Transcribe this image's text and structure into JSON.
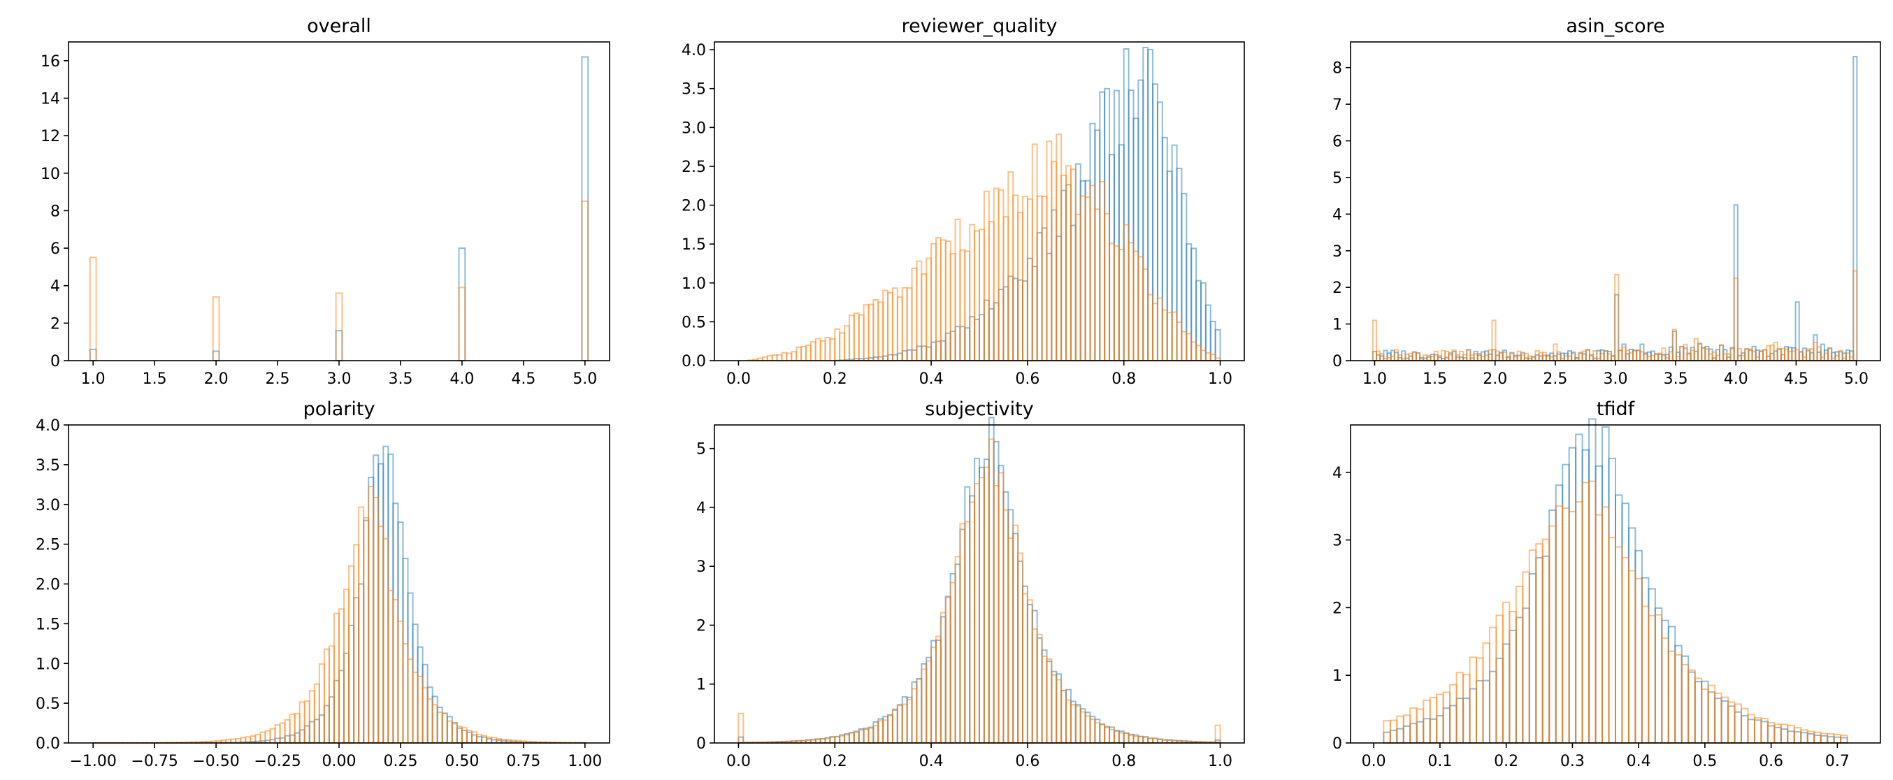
{
  "colors": {
    "series_a": "#1f77b4",
    "series_b": "#ff7f0e",
    "frame": "#000000"
  },
  "chart_data": [
    {
      "type": "histogram",
      "title": "overall",
      "xlim": [
        0.8,
        5.2
      ],
      "ylim": [
        0,
        17
      ],
      "xticks": [
        1.0,
        1.5,
        2.0,
        2.5,
        3.0,
        3.5,
        4.0,
        4.5,
        5.0
      ],
      "xtick_labels": [
        "1.0",
        "1.5",
        "2.0",
        "2.5",
        "3.0",
        "3.5",
        "4.0",
        "4.5",
        "5.0"
      ],
      "yticks": [
        0,
        2,
        4,
        6,
        8,
        10,
        12,
        14,
        16
      ],
      "ytick_labels": [
        "0",
        "2",
        "4",
        "6",
        "8",
        "10",
        "12",
        "14",
        "16"
      ],
      "bin_width": 0.05,
      "series": [
        {
          "color": "#1f77b4",
          "points": [
            [
              1.0,
              0.6
            ],
            [
              2.0,
              0.5
            ],
            [
              3.0,
              1.6
            ],
            [
              4.0,
              6.0
            ],
            [
              5.0,
              16.2
            ]
          ]
        },
        {
          "color": "#ff7f0e",
          "points": [
            [
              1.0,
              5.5
            ],
            [
              2.0,
              3.4
            ],
            [
              3.0,
              3.6
            ],
            [
              4.0,
              3.9
            ],
            [
              5.0,
              8.5
            ]
          ]
        }
      ]
    },
    {
      "type": "histogram",
      "title": "reviewer_quality",
      "xlim": [
        -0.05,
        1.05
      ],
      "ylim": [
        0,
        4.1
      ],
      "xticks": [
        0.0,
        0.2,
        0.4,
        0.6,
        0.8,
        1.0
      ],
      "xtick_labels": [
        "0.0",
        "0.2",
        "0.4",
        "0.6",
        "0.8",
        "1.0"
      ],
      "yticks": [
        0.0,
        0.5,
        1.0,
        1.5,
        2.0,
        2.5,
        3.0,
        3.5,
        4.0
      ],
      "ytick_labels": [
        "0.0",
        "0.5",
        "1.0",
        "1.5",
        "2.0",
        "2.5",
        "3.0",
        "3.5",
        "4.0"
      ],
      "bin_width": 0.01,
      "series": [
        {
          "color": "#1f77b4",
          "points": [
            [
              0.2,
              0.0
            ],
            [
              0.3,
              0.05
            ],
            [
              0.4,
              0.2
            ],
            [
              0.5,
              0.6
            ],
            [
              0.55,
              0.9
            ],
            [
              0.6,
              1.1
            ],
            [
              0.65,
              1.7
            ],
            [
              0.7,
              2.1
            ],
            [
              0.75,
              2.9
            ],
            [
              0.8,
              3.4
            ],
            [
              0.84,
              3.9
            ],
            [
              0.88,
              3.2
            ],
            [
              0.92,
              2.3
            ],
            [
              0.95,
              1.3
            ],
            [
              0.98,
              0.5
            ],
            [
              1.0,
              0.3
            ]
          ]
        },
        {
          "color": "#ff7f0e",
          "points": [
            [
              0.02,
              0.0
            ],
            [
              0.1,
              0.1
            ],
            [
              0.2,
              0.35
            ],
            [
              0.3,
              0.8
            ],
            [
              0.4,
              1.3
            ],
            [
              0.5,
              1.8
            ],
            [
              0.6,
              2.3
            ],
            [
              0.65,
              2.6
            ],
            [
              0.7,
              2.2
            ],
            [
              0.75,
              2.0
            ],
            [
              0.8,
              1.6
            ],
            [
              0.85,
              1.0
            ],
            [
              0.9,
              0.6
            ],
            [
              0.95,
              0.2
            ],
            [
              1.0,
              0.02
            ]
          ]
        }
      ]
    },
    {
      "type": "histogram",
      "title": "asin_score",
      "xlim": [
        0.8,
        5.2
      ],
      "ylim": [
        0,
        8.7
      ],
      "xticks": [
        1.0,
        1.5,
        2.0,
        2.5,
        3.0,
        3.5,
        4.0,
        4.5,
        5.0
      ],
      "xtick_labels": [
        "1.0",
        "1.5",
        "2.0",
        "2.5",
        "3.0",
        "3.5",
        "4.0",
        "4.5",
        "5.0"
      ],
      "yticks": [
        0,
        1,
        2,
        3,
        4,
        5,
        6,
        7,
        8
      ],
      "ytick_labels": [
        "0",
        "1",
        "2",
        "3",
        "4",
        "5",
        "6",
        "7",
        "8"
      ],
      "bin_width": 0.03,
      "series": [
        {
          "color": "#1f77b4",
          "points": [
            [
              1.0,
              0.25
            ],
            [
              2.0,
              0.3
            ],
            [
              3.0,
              1.8
            ],
            [
              3.5,
              0.8
            ],
            [
              4.0,
              4.25
            ],
            [
              4.5,
              1.6
            ],
            [
              4.67,
              0.7
            ],
            [
              5.0,
              8.3
            ]
          ]
        },
        {
          "color": "#ff7f0e",
          "points": [
            [
              1.0,
              1.1
            ],
            [
              1.5,
              0.25
            ],
            [
              2.0,
              1.1
            ],
            [
              2.5,
              0.45
            ],
            [
              3.0,
              2.35
            ],
            [
              3.5,
              0.85
            ],
            [
              3.67,
              0.6
            ],
            [
              4.0,
              2.25
            ],
            [
              4.33,
              0.5
            ],
            [
              4.5,
              0.3
            ],
            [
              4.67,
              0.5
            ],
            [
              5.0,
              2.45
            ]
          ]
        }
      ]
    },
    {
      "type": "histogram",
      "title": "polarity",
      "xlim": [
        -1.1,
        1.1
      ],
      "ylim": [
        0,
        4.0
      ],
      "xticks": [
        -1.0,
        -0.75,
        -0.5,
        -0.25,
        0.0,
        0.25,
        0.5,
        0.75,
        1.0
      ],
      "xtick_labels": [
        "−1.00",
        "−0.75",
        "−0.50",
        "−0.25",
        "0.00",
        "0.25",
        "0.50",
        "0.75",
        "1.00"
      ],
      "yticks": [
        0.0,
        0.5,
        1.0,
        1.5,
        2.0,
        2.5,
        3.0,
        3.5,
        4.0
      ],
      "ytick_labels": [
        "0.0",
        "0.5",
        "1.0",
        "1.5",
        "2.0",
        "2.5",
        "3.0",
        "3.5",
        "4.0"
      ],
      "bin_width": 0.02,
      "series": [
        {
          "color": "#1f77b4",
          "stats": {
            "mean": 0.18,
            "peak": 3.8
          }
        },
        {
          "color": "#ff7f0e",
          "stats": {
            "mean": 0.12,
            "peak": 3.0
          }
        }
      ]
    },
    {
      "type": "histogram",
      "title": "subjectivity",
      "xlim": [
        -0.05,
        1.05
      ],
      "ylim": [
        0,
        5.4
      ],
      "xticks": [
        0.0,
        0.2,
        0.4,
        0.6,
        0.8,
        1.0
      ],
      "xtick_labels": [
        "0.0",
        "0.2",
        "0.4",
        "0.6",
        "0.8",
        "1.0"
      ],
      "yticks": [
        0,
        1,
        2,
        3,
        4,
        5
      ],
      "ytick_labels": [
        "0",
        "1",
        "2",
        "3",
        "4",
        "5"
      ],
      "bin_width": 0.01,
      "series": [
        {
          "color": "#1f77b4",
          "stats": {
            "mean": 0.52,
            "peak": 5.2
          }
        },
        {
          "color": "#ff7f0e",
          "stats": {
            "mean": 0.52,
            "peak": 4.9
          }
        }
      ]
    },
    {
      "type": "histogram",
      "title": "tfidf",
      "xlim": [
        -0.035,
        0.765
      ],
      "ylim": [
        0,
        4.7
      ],
      "xticks": [
        0.0,
        0.1,
        0.2,
        0.3,
        0.4,
        0.5,
        0.6,
        0.7
      ],
      "xtick_labels": [
        "0.0",
        "0.1",
        "0.2",
        "0.3",
        "0.4",
        "0.5",
        "0.6",
        "0.7"
      ],
      "yticks": [
        0,
        1,
        2,
        3,
        4
      ],
      "ytick_labels": [
        "0",
        "1",
        "2",
        "3",
        "4"
      ],
      "bin_width": 0.01,
      "series": [
        {
          "color": "#1f77b4",
          "stats": {
            "mean": 0.33,
            "peak": 4.5
          }
        },
        {
          "color": "#ff7f0e",
          "stats": {
            "mean": 0.31,
            "peak": 3.75
          }
        }
      ]
    }
  ]
}
